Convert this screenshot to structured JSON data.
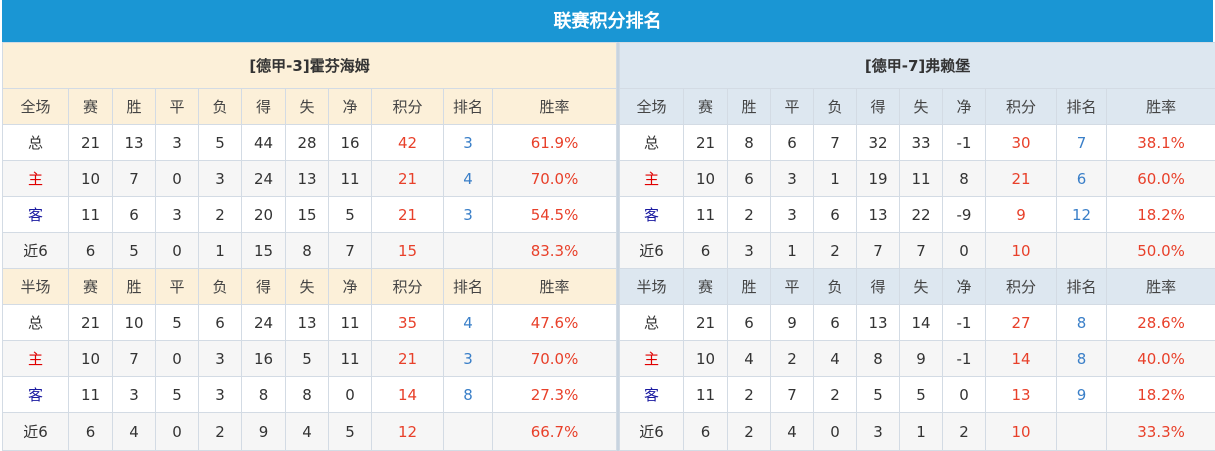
{
  "title": "联赛积分排名",
  "colors": {
    "title_bar": "#1a96d4",
    "home_header": "#fcf0d9",
    "away_header": "#dde7f0",
    "points": "#e8402a",
    "rank": "#3a7fc8"
  },
  "teams": [
    {
      "name": "[德甲-3]霍芬海姆",
      "sections": [
        {
          "headers": [
            "全场",
            "赛",
            "胜",
            "平",
            "负",
            "得",
            "失",
            "净",
            "积分",
            "排名",
            "胜率"
          ],
          "rows": [
            [
              "总",
              "21",
              "13",
              "3",
              "5",
              "44",
              "28",
              "16",
              "42",
              "3",
              "61.9%"
            ],
            [
              "主",
              "10",
              "7",
              "0",
              "3",
              "24",
              "13",
              "11",
              "21",
              "4",
              "70.0%"
            ],
            [
              "客",
              "11",
              "6",
              "3",
              "2",
              "20",
              "15",
              "5",
              "21",
              "3",
              "54.5%"
            ],
            [
              "近6",
              "6",
              "5",
              "0",
              "1",
              "15",
              "8",
              "7",
              "15",
              "",
              "83.3%"
            ]
          ]
        },
        {
          "headers": [
            "半场",
            "赛",
            "胜",
            "平",
            "负",
            "得",
            "失",
            "净",
            "积分",
            "排名",
            "胜率"
          ],
          "rows": [
            [
              "总",
              "21",
              "10",
              "5",
              "6",
              "24",
              "13",
              "11",
              "35",
              "4",
              "47.6%"
            ],
            [
              "主",
              "10",
              "7",
              "0",
              "3",
              "16",
              "5",
              "11",
              "21",
              "3",
              "70.0%"
            ],
            [
              "客",
              "11",
              "3",
              "5",
              "3",
              "8",
              "8",
              "0",
              "14",
              "8",
              "27.3%"
            ],
            [
              "近6",
              "6",
              "4",
              "0",
              "2",
              "9",
              "4",
              "5",
              "12",
              "",
              "66.7%"
            ]
          ]
        }
      ]
    },
    {
      "name": "[德甲-7]弗赖堡",
      "sections": [
        {
          "headers": [
            "全场",
            "赛",
            "胜",
            "平",
            "负",
            "得",
            "失",
            "净",
            "积分",
            "排名",
            "胜率"
          ],
          "rows": [
            [
              "总",
              "21",
              "8",
              "6",
              "7",
              "32",
              "33",
              "-1",
              "30",
              "7",
              "38.1%"
            ],
            [
              "主",
              "10",
              "6",
              "3",
              "1",
              "19",
              "11",
              "8",
              "21",
              "6",
              "60.0%"
            ],
            [
              "客",
              "11",
              "2",
              "3",
              "6",
              "13",
              "22",
              "-9",
              "9",
              "12",
              "18.2%"
            ],
            [
              "近6",
              "6",
              "3",
              "1",
              "2",
              "7",
              "7",
              "0",
              "10",
              "",
              "50.0%"
            ]
          ]
        },
        {
          "headers": [
            "半场",
            "赛",
            "胜",
            "平",
            "负",
            "得",
            "失",
            "净",
            "积分",
            "排名",
            "胜率"
          ],
          "rows": [
            [
              "总",
              "21",
              "6",
              "9",
              "6",
              "13",
              "14",
              "-1",
              "27",
              "8",
              "28.6%"
            ],
            [
              "主",
              "10",
              "4",
              "2",
              "4",
              "8",
              "9",
              "-1",
              "14",
              "8",
              "40.0%"
            ],
            [
              "客",
              "11",
              "2",
              "7",
              "2",
              "5",
              "5",
              "0",
              "13",
              "9",
              "18.2%"
            ],
            [
              "近6",
              "6",
              "2",
              "4",
              "0",
              "3",
              "1",
              "2",
              "10",
              "",
              "33.3%"
            ]
          ]
        }
      ]
    }
  ]
}
